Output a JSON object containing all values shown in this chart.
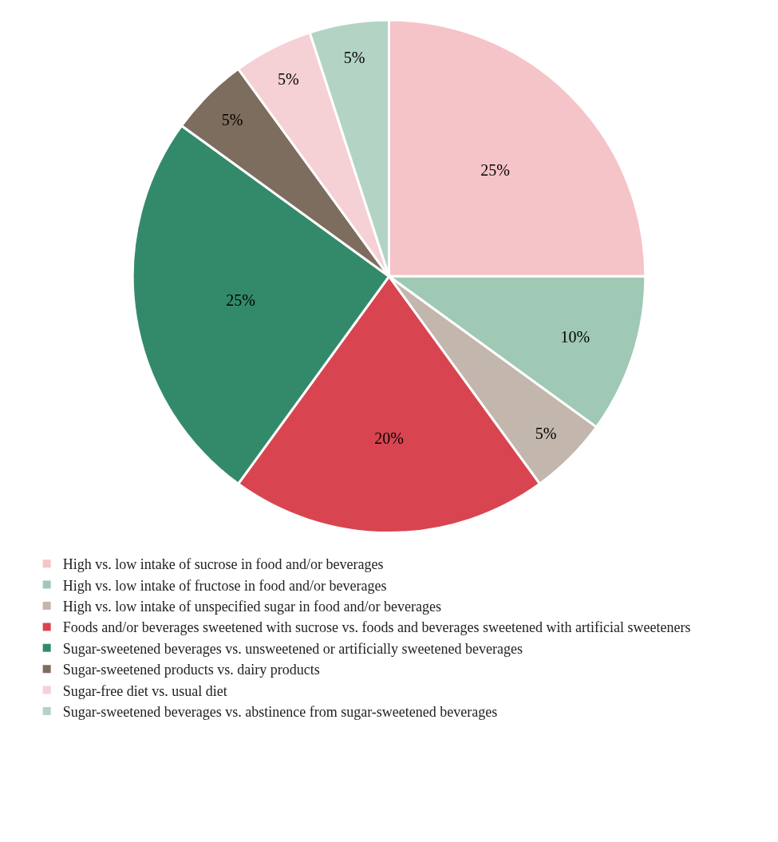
{
  "chart_data": {
    "type": "pie",
    "categories": [
      "High vs. low intake of sucrose in food and/or beverages",
      "High vs. low intake of fructose in food and/or beverages",
      "High vs. low intake of unspecified sugar in food and/or beverages",
      "Foods and/or beverages sweetened with sucrose vs. foods and beverages sweetened with artificial sweeteners",
      "Sugar-sweetened beverages vs. unsweetened or artificially sweetened beverages",
      "Sugar-sweetened products vs. dairy products",
      "Sugar-free diet vs. usual diet",
      "Sugar-sweetened beverages vs. abstinence from sugar-sweetened beverages"
    ],
    "values": [
      25,
      10,
      5,
      20,
      25,
      5,
      5,
      5
    ],
    "colors": [
      "#f5c4c8",
      "#9fc9b5",
      "#c2b6ad",
      "#d84550",
      "#338a6a",
      "#7d6d5e",
      "#f5d0d4",
      "#b3d4c4"
    ],
    "value_labels": [
      "25%",
      "10%",
      "5%",
      "20%",
      "25%",
      "5%",
      "5%",
      "5%"
    ],
    "legend": "bottom"
  }
}
